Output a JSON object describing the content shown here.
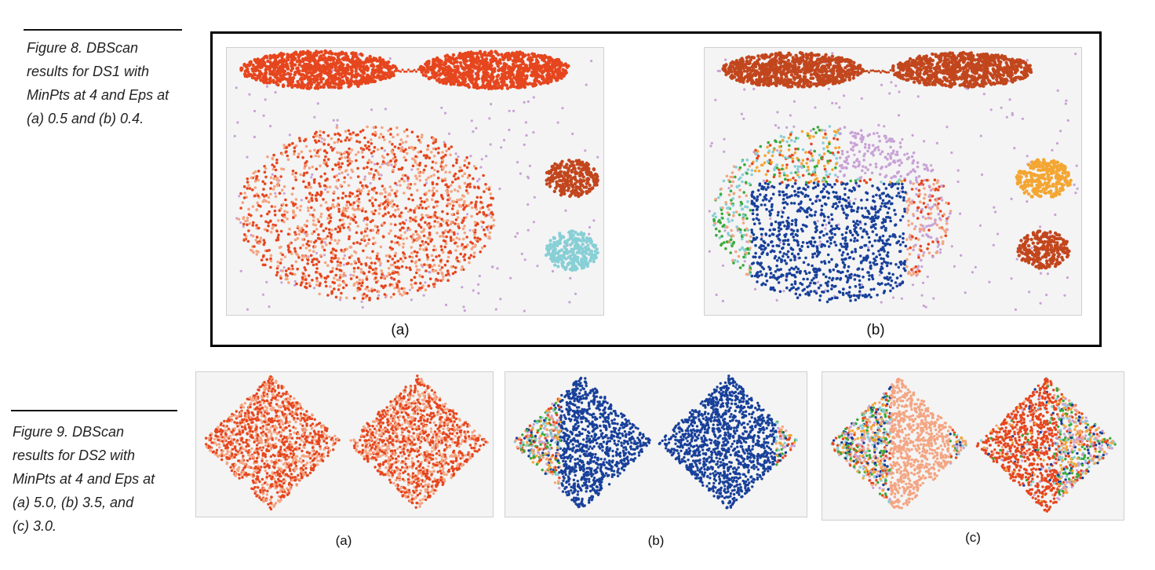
{
  "figure8": {
    "caption_lines": [
      "Figure 8. DBScan",
      "results for DS1 with",
      "MinPts at 4 and Eps at",
      "(a) 0.5 and (b) 0.4."
    ],
    "panels": [
      {
        "label": "(a)"
      },
      {
        "label": "(b)"
      }
    ]
  },
  "figure9": {
    "caption_lines": [
      "Figure 9. DBScan",
      "results for DS2 with",
      "MinPts at 4 and Eps at",
      "(a) 5.0, (b) 3.5, and",
      "(c) 3.0."
    ],
    "panels": [
      {
        "label": "(a)"
      },
      {
        "label": "(b)"
      },
      {
        "label": "(c)"
      }
    ]
  },
  "colors": {
    "red_orange": "#e6461e",
    "salmon": "#f4a582",
    "dark_rust": "#c2461d",
    "navy": "#18409a",
    "lavender": "#c8a2d6",
    "light_cyan": "#88cfd6",
    "green": "#3aaa3a",
    "orange": "#f4a632",
    "background": "#f4f4f4"
  }
}
